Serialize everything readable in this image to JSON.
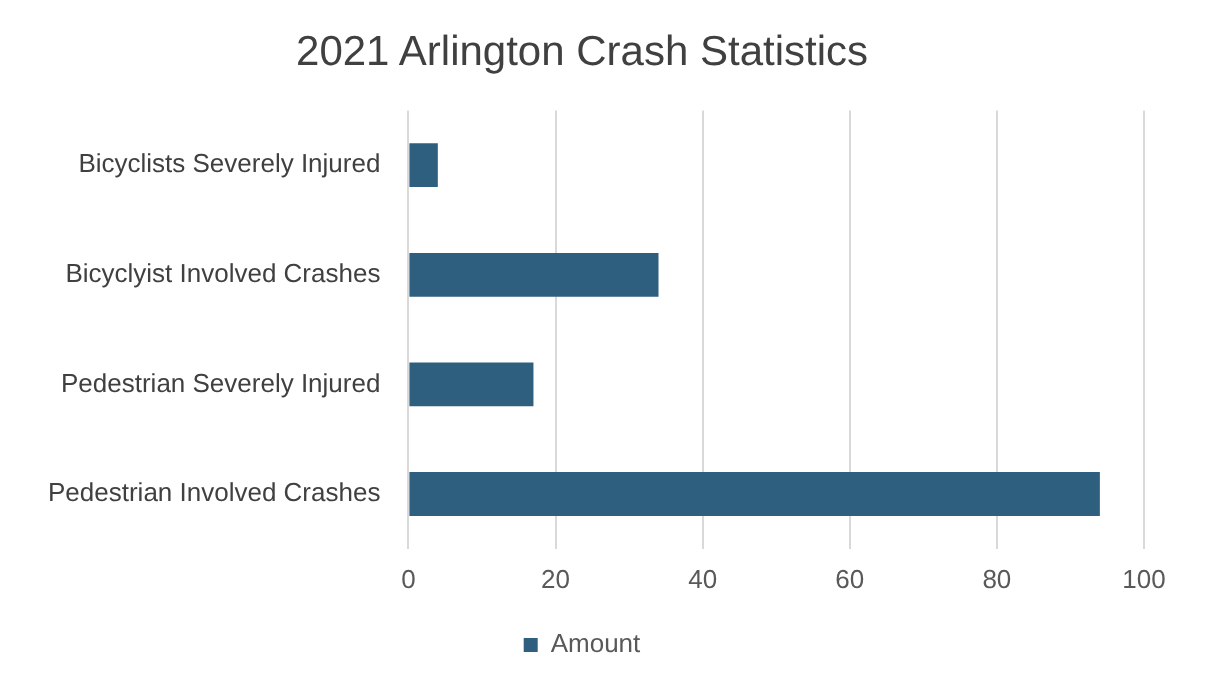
{
  "chart_data": {
    "type": "bar",
    "orientation": "horizontal",
    "title": "2021 Arlington Crash Statistics",
    "categories": [
      "Bicyclists Severely Injured",
      "Bicyclyist Involved Crashes",
      "Pedestrian Severely Injured",
      "Pedestrian Involved Crashes"
    ],
    "series": [
      {
        "name": "Amount",
        "color": "#2e5f7f",
        "values": [
          4,
          34,
          17,
          94
        ]
      }
    ],
    "xlim": [
      0,
      100
    ],
    "xticks": [
      0,
      20,
      40,
      60,
      80,
      100
    ],
    "grid": "x",
    "legend": "bottom"
  }
}
